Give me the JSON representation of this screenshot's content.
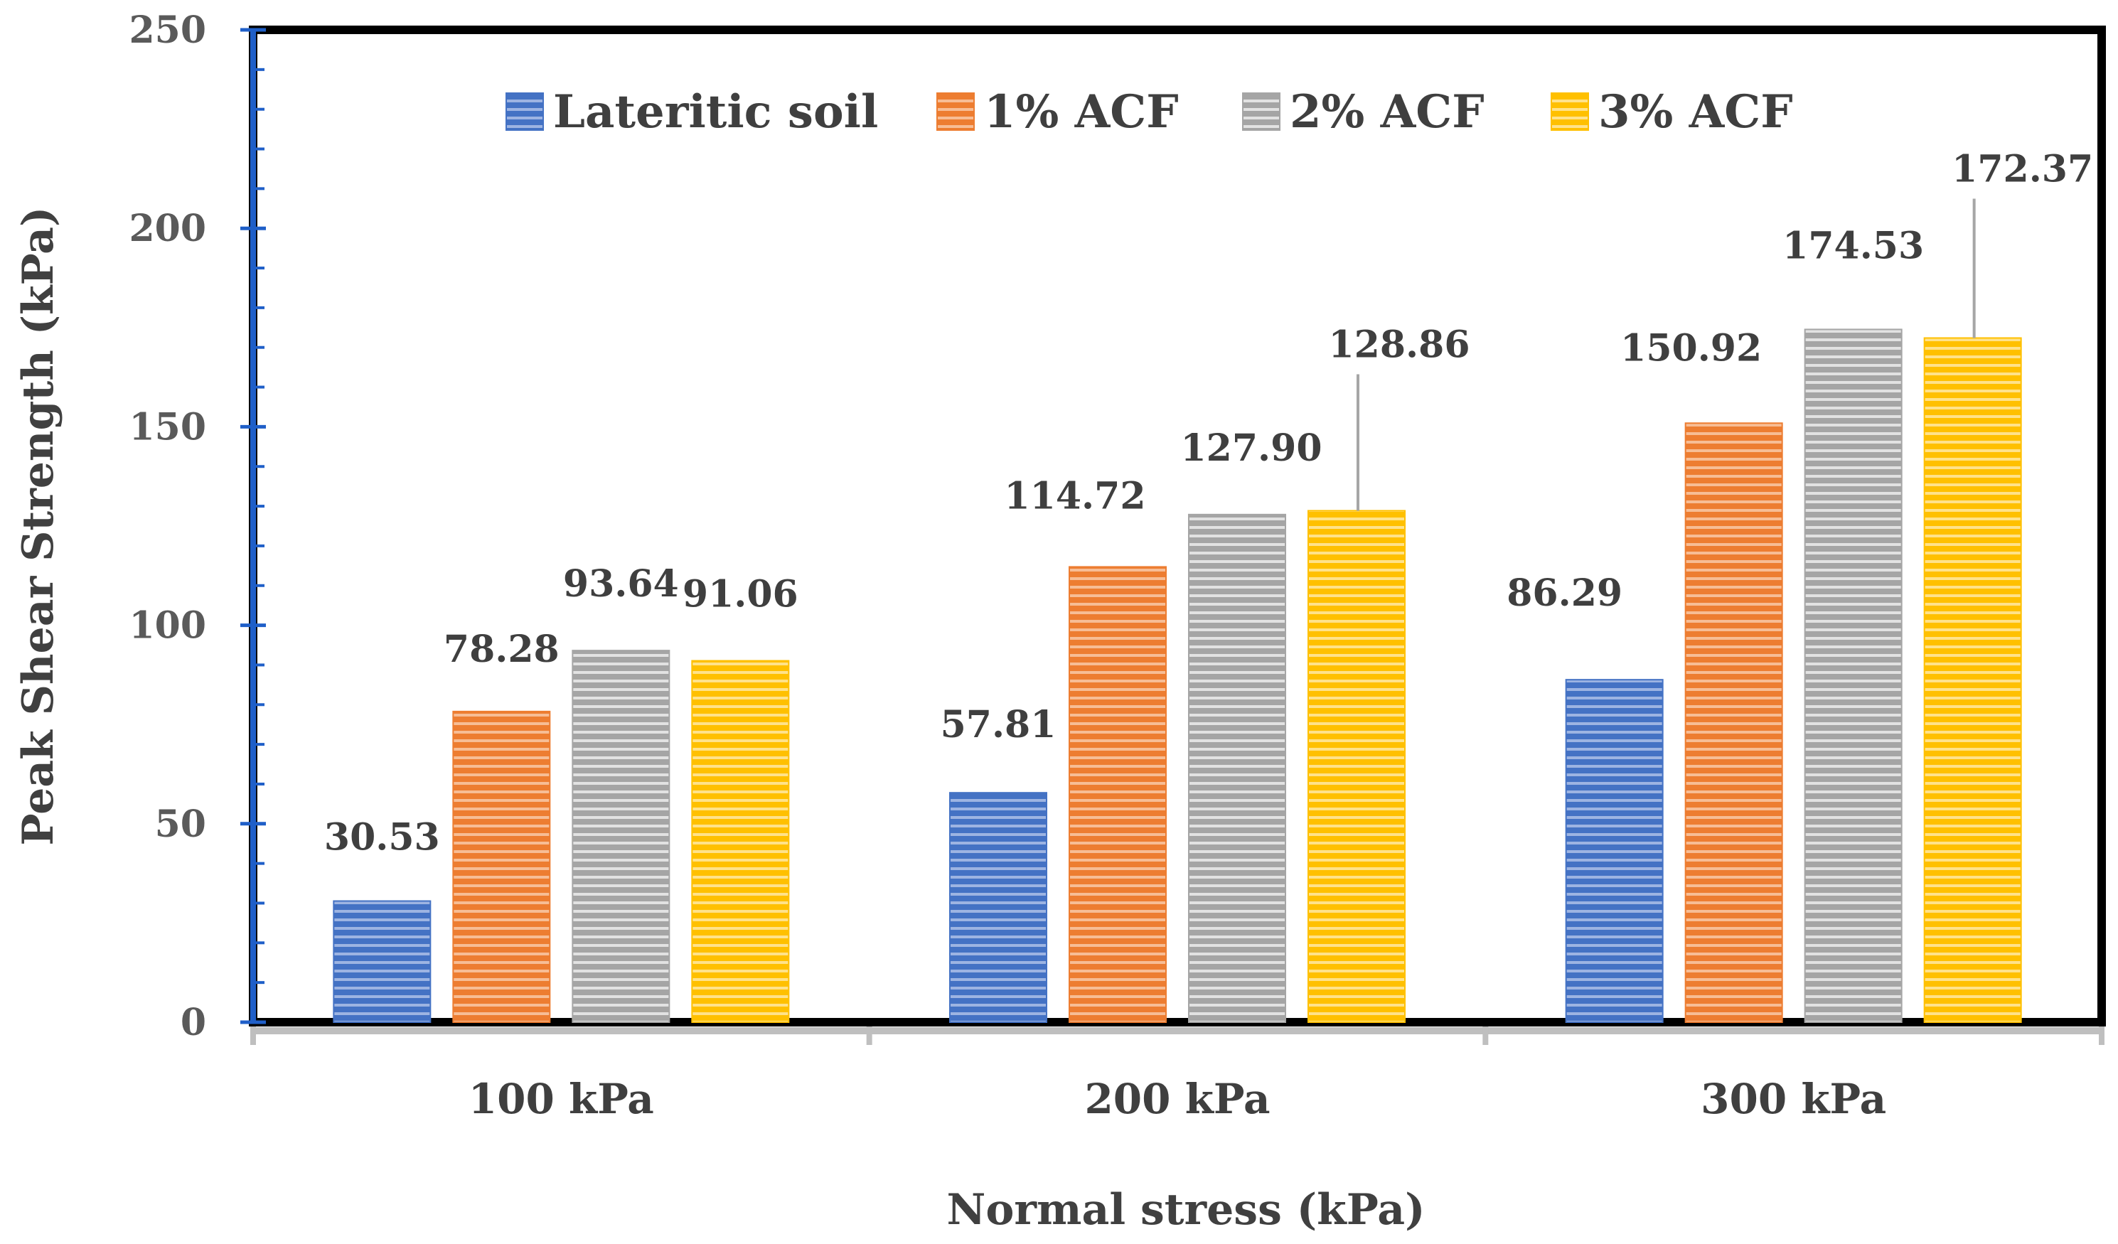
{
  "chart_data": {
    "type": "bar",
    "title": "",
    "xlabel": "Normal stress (kPa)",
    "ylabel": "Peak Shear Strength (kPa)",
    "categories": [
      "100 kPa",
      "200 kPa",
      "300 kPa"
    ],
    "ylim": [
      0,
      250
    ],
    "yticks": [
      0,
      50,
      100,
      150,
      200,
      250
    ],
    "grid": false,
    "legend_position": "top",
    "series": [
      {
        "name": "Lateritic soil",
        "color": "#4472c4",
        "values": [
          30.53,
          57.81,
          86.29
        ],
        "labels": [
          "30.53",
          "57.81",
          "86.29"
        ]
      },
      {
        "name": "1% ACF",
        "color": "#ed7d31",
        "values": [
          78.28,
          114.72,
          150.92
        ],
        "labels": [
          "78.28",
          "114.72",
          "150.92"
        ]
      },
      {
        "name": "2% ACF",
        "color": "#a5a5a5",
        "values": [
          93.64,
          127.9,
          174.53
        ],
        "labels": [
          "93.64",
          "127.90",
          "174.53"
        ]
      },
      {
        "name": "3% ACF",
        "color": "#ffc000",
        "values": [
          91.06,
          128.86,
          172.37
        ],
        "labels": [
          "91.06",
          "128.86",
          "172.37"
        ]
      }
    ]
  }
}
